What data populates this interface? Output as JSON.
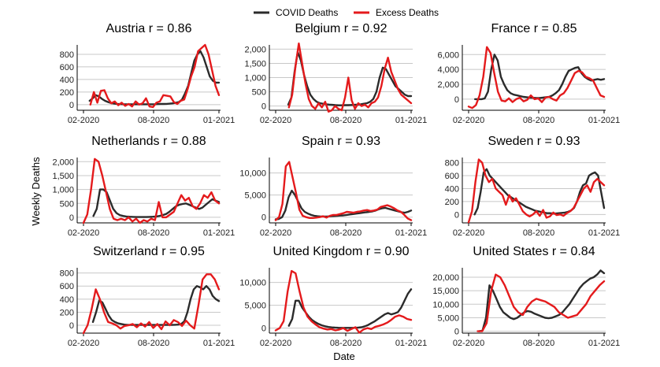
{
  "legend": [
    {
      "label": "COVID Deaths",
      "color": "#2b2b2b"
    },
    {
      "label": "Excess Deaths",
      "color": "#e41a1c"
    }
  ],
  "xlabel": "Date",
  "ylabel": "Weekly Deaths",
  "chart_data": [
    {
      "type": "line",
      "title": "Austria r = 0.86",
      "x_ticks": [
        "02-2020",
        "08-2020",
        "01-2021"
      ],
      "y_ticks": [
        0,
        200,
        400,
        600,
        800
      ],
      "y_tick_labels": [
        "0",
        "200",
        "400",
        "600",
        "800"
      ],
      "ylim": [
        -90,
        950
      ],
      "series": [
        {
          "name": "COVID Deaths",
          "values": [
            null,
            null,
            60,
            100,
            150,
            130,
            90,
            60,
            40,
            25,
            15,
            10,
            8,
            5,
            5,
            5,
            5,
            5,
            5,
            5,
            5,
            5,
            5,
            5,
            8,
            10,
            10,
            12,
            15,
            20,
            30,
            40,
            80,
            180,
            300,
            500,
            700,
            800,
            850,
            750,
            600,
            450,
            380,
            350,
            350
          ]
        },
        {
          "name": "Excess Deaths",
          "values": [
            null,
            null,
            0,
            200,
            30,
            220,
            230,
            100,
            20,
            50,
            -10,
            30,
            -20,
            10,
            -30,
            50,
            0,
            20,
            100,
            -30,
            -40,
            30,
            50,
            150,
            140,
            130,
            40,
            10,
            60,
            80,
            250,
            450,
            600,
            850,
            900,
            950,
            800,
            550,
            300,
            150
          ]
        }
      ]
    },
    {
      "type": "line",
      "title": "Belgium r = 0.92",
      "x_ticks": [
        "02-2020",
        "08-2020",
        "01-2021"
      ],
      "y_ticks": [
        0,
        500,
        1000,
        1500,
        2000
      ],
      "y_tick_labels": [
        "0",
        "500",
        "1,000",
        "1,500",
        "2,000"
      ],
      "ylim": [
        -150,
        2150
      ],
      "series": [
        {
          "name": "COVID Deaths",
          "values": [
            null,
            null,
            null,
            null,
            50,
            300,
            1200,
            1900,
            1600,
            1100,
            700,
            400,
            250,
            150,
            100,
            80,
            60,
            50,
            40,
            30,
            25,
            25,
            30,
            30,
            35,
            40,
            50,
            60,
            80,
            100,
            150,
            250,
            500,
            1000,
            1350,
            1300,
            1100,
            900,
            700,
            600,
            500,
            400,
            350,
            350
          ]
        },
        {
          "name": "Excess Deaths",
          "values": [
            null,
            null,
            null,
            null,
            -50,
            400,
            1400,
            2200,
            1500,
            800,
            250,
            0,
            -100,
            100,
            -50,
            150,
            -200,
            -150,
            0,
            -100,
            -150,
            300,
            1000,
            200,
            -100,
            100,
            0,
            50,
            -50,
            100,
            150,
            300,
            700,
            1300,
            1700,
            1200,
            900,
            600,
            400,
            300,
            200,
            100
          ]
        }
      ]
    },
    {
      "type": "line",
      "title": "France r = 0.85",
      "x_ticks": [
        "02-2020",
        "08-2020",
        "01-2021"
      ],
      "y_ticks": [
        0,
        2000,
        4000,
        6000
      ],
      "y_tick_labels": [
        "0",
        "2,000",
        "4,000",
        "6,000"
      ],
      "ylim": [
        -1500,
        7300
      ],
      "series": [
        {
          "name": "COVID Deaths",
          "values": [
            null,
            null,
            0,
            0,
            0,
            100,
            1000,
            4000,
            6000,
            5200,
            3000,
            2000,
            1200,
            800,
            600,
            500,
            400,
            300,
            250,
            200,
            180,
            150,
            150,
            200,
            250,
            300,
            500,
            800,
            1200,
            2000,
            3000,
            3800,
            4000,
            4200,
            4300,
            3500,
            3000,
            2700,
            2500,
            2600,
            2700,
            2600,
            2700
          ]
        },
        {
          "name": "Excess Deaths",
          "values": [
            -1000,
            -1200,
            -800,
            500,
            3000,
            7000,
            6200,
            3500,
            1000,
            -200,
            -300,
            100,
            -400,
            0,
            200,
            -300,
            -100,
            500,
            0,
            100,
            -400,
            200,
            300,
            0,
            -200,
            500,
            800,
            1500,
            2500,
            3500,
            3800,
            3600,
            3000,
            2800,
            2500,
            1500,
            500,
            300
          ]
        }
      ]
    },
    {
      "type": "line",
      "title": "Netherlands r = 0.88",
      "x_ticks": [
        "02-2020",
        "08-2020",
        "01-2021"
      ],
      "y_ticks": [
        0,
        500,
        1000,
        1500,
        2000
      ],
      "y_tick_labels": [
        "0",
        "500",
        "1,000",
        "1,500",
        "2,000"
      ],
      "ylim": [
        -200,
        2150
      ],
      "series": [
        {
          "name": "COVID Deaths",
          "values": [
            null,
            null,
            null,
            50,
            300,
            1000,
            1000,
            900,
            600,
            300,
            150,
            80,
            50,
            30,
            20,
            15,
            10,
            10,
            10,
            10,
            15,
            20,
            30,
            50,
            80,
            120,
            200,
            300,
            400,
            450,
            480,
            500,
            450,
            400,
            350,
            300,
            350,
            450,
            550,
            650,
            600,
            550
          ]
        },
        {
          "name": "Excess Deaths",
          "values": [
            -200,
            100,
            1000,
            2100,
            2000,
            1500,
            900,
            300,
            -50,
            -100,
            -50,
            -100,
            0,
            -150,
            -50,
            -200,
            -100,
            -150,
            -50,
            -100,
            550,
            0,
            0,
            100,
            200,
            500,
            800,
            600,
            700,
            400,
            300,
            500,
            800,
            700,
            900,
            600,
            500
          ]
        }
      ]
    },
    {
      "type": "line",
      "title": "Spain r = 0.93",
      "x_ticks": [
        "02-2020",
        "08-2020",
        "01-2021"
      ],
      "y_ticks": [
        0,
        5000,
        10000
      ],
      "y_tick_labels": [
        "0",
        "5,000",
        "10,000"
      ],
      "ylim": [
        -1300,
        13500
      ],
      "series": [
        {
          "name": "COVID Deaths",
          "values": [
            -500,
            -400,
            0,
            1500,
            4500,
            6000,
            5000,
            3500,
            2000,
            1200,
            800,
            500,
            300,
            200,
            150,
            150,
            150,
            200,
            250,
            300,
            350,
            400,
            500,
            600,
            700,
            800,
            900,
            1000,
            1100,
            1200,
            1300,
            1500,
            1800,
            2000,
            2100,
            1900,
            1700,
            1500,
            1300,
            1100,
            1000,
            1200,
            1500
          ]
        },
        {
          "name": "Excess Deaths",
          "values": [
            -700,
            0,
            3000,
            11500,
            12500,
            9000,
            5500,
            1700,
            300,
            0,
            -200,
            -200,
            -100,
            0,
            200,
            -100,
            300,
            500,
            500,
            700,
            900,
            1200,
            1100,
            1000,
            1200,
            1300,
            1500,
            1600,
            1400,
            1500,
            1700,
            2300,
            2500,
            2700,
            2400,
            2000,
            1500,
            1200,
            500,
            -300,
            -700
          ]
        }
      ]
    },
    {
      "type": "line",
      "title": "Sweden r = 0.93",
      "x_ticks": [
        "02-2020",
        "08-2020",
        "01-2021"
      ],
      "y_ticks": [
        0,
        200,
        400,
        600,
        800
      ],
      "y_tick_labels": [
        "0",
        "200",
        "400",
        "600",
        "800"
      ],
      "ylim": [
        -130,
        880
      ],
      "series": [
        {
          "name": "COVID Deaths",
          "values": [
            null,
            null,
            0,
            100,
            350,
            650,
            700,
            600,
            550,
            500,
            450,
            400,
            350,
            300,
            270,
            240,
            210,
            180,
            150,
            120,
            100,
            80,
            60,
            50,
            40,
            30,
            20,
            20,
            15,
            15,
            20,
            25,
            30,
            40,
            60,
            100,
            200,
            350,
            450,
            480,
            600,
            630,
            650,
            600,
            350,
            100
          ]
        },
        {
          "name": "Excess Deaths",
          "values": [
            -120,
            50,
            500,
            850,
            800,
            600,
            500,
            550,
            400,
            350,
            300,
            150,
            300,
            200,
            250,
            150,
            50,
            0,
            -30,
            0,
            50,
            -20,
            70,
            -50,
            -30,
            30,
            -10,
            0,
            -20,
            20,
            50,
            100,
            200,
            300,
            400,
            450,
            350,
            500,
            550,
            500,
            450
          ]
        }
      ]
    },
    {
      "type": "line",
      "title": "Switzerland r = 0.95",
      "x_ticks": [
        "02-2020",
        "08-2020",
        "01-2021"
      ],
      "y_ticks": [
        0,
        200,
        400,
        600,
        800
      ],
      "y_tick_labels": [
        "0",
        "200",
        "400",
        "600",
        "800"
      ],
      "ylim": [
        -120,
        880
      ],
      "series": [
        {
          "name": "COVID Deaths",
          "values": [
            null,
            null,
            null,
            50,
            200,
            380,
            350,
            250,
            150,
            80,
            50,
            30,
            20,
            10,
            5,
            5,
            5,
            5,
            5,
            5,
            5,
            5,
            5,
            5,
            5,
            5,
            5,
            5,
            5,
            8,
            10,
            20,
            60,
            200,
            400,
            550,
            600,
            580,
            550,
            600,
            550,
            450,
            400,
            370
          ]
        },
        {
          "name": "Excess Deaths",
          "values": [
            -120,
            0,
            250,
            550,
            400,
            200,
            50,
            30,
            0,
            -50,
            -10,
            0,
            20,
            -30,
            30,
            -20,
            50,
            -40,
            20,
            -60,
            60,
            0,
            80,
            50,
            -10,
            70,
            0,
            -50,
            300,
            700,
            780,
            780,
            700,
            550
          ]
        }
      ]
    },
    {
      "type": "line",
      "title": "United Kingdom r = 0.90",
      "x_ticks": [
        "02-2020",
        "08-2020",
        "01-2021"
      ],
      "y_ticks": [
        0,
        5000,
        10000
      ],
      "y_tick_labels": [
        "0",
        "5,000",
        "10,000"
      ],
      "ylim": [
        -1100,
        13200
      ],
      "series": [
        {
          "name": "COVID Deaths",
          "values": [
            null,
            null,
            null,
            null,
            500,
            2000,
            6000,
            6000,
            4500,
            3500,
            2500,
            1800,
            1300,
            900,
            600,
            400,
            250,
            150,
            100,
            80,
            60,
            50,
            50,
            60,
            80,
            120,
            200,
            400,
            700,
            1100,
            1500,
            2000,
            2500,
            3000,
            3300,
            3000,
            3200,
            3500,
            4500,
            6000,
            7500,
            8500
          ]
        },
        {
          "name": "Excess Deaths",
          "values": [
            -500,
            0,
            1500,
            8000,
            12500,
            12000,
            8000,
            4500,
            2500,
            1500,
            800,
            200,
            -100,
            -300,
            -200,
            -500,
            -300,
            0,
            -600,
            -200,
            200,
            -1000,
            -300,
            0,
            -200,
            300,
            500,
            800,
            1200,
            1800,
            2500,
            2800,
            2500,
            2000,
            1800
          ]
        }
      ]
    },
    {
      "type": "line",
      "title": "United States r = 0.84",
      "x_ticks": [
        "02-2020",
        "08-2020",
        "01-2021"
      ],
      "y_ticks": [
        0,
        5000,
        10000,
        15000,
        20000
      ],
      "y_tick_labels": [
        "0",
        "5,000",
        "10,000",
        "15,000",
        "20,000"
      ],
      "ylim": [
        -700,
        23500
      ],
      "series": [
        {
          "name": "COVID Deaths",
          "values": [
            null,
            null,
            null,
            0,
            200,
            5000,
            17000,
            15000,
            12000,
            9000,
            7000,
            6000,
            5000,
            4500,
            5000,
            6000,
            7000,
            7500,
            7200,
            6500,
            6000,
            5500,
            5000,
            4800,
            5000,
            5500,
            6000,
            7000,
            8500,
            10000,
            12000,
            14000,
            16000,
            17500,
            18500,
            19500,
            20000,
            21000,
            22500,
            21500
          ]
        },
        {
          "name": "Excess Deaths",
          "values": [
            null,
            null,
            0,
            0,
            3000,
            15000,
            21000,
            20000,
            17000,
            13000,
            9000,
            7000,
            6000,
            9000,
            11000,
            12000,
            11500,
            11000,
            10000,
            9000,
            7000,
            6000,
            5000,
            5500,
            6000,
            8000,
            10000,
            13000,
            15000,
            17000,
            18500
          ]
        }
      ]
    }
  ]
}
